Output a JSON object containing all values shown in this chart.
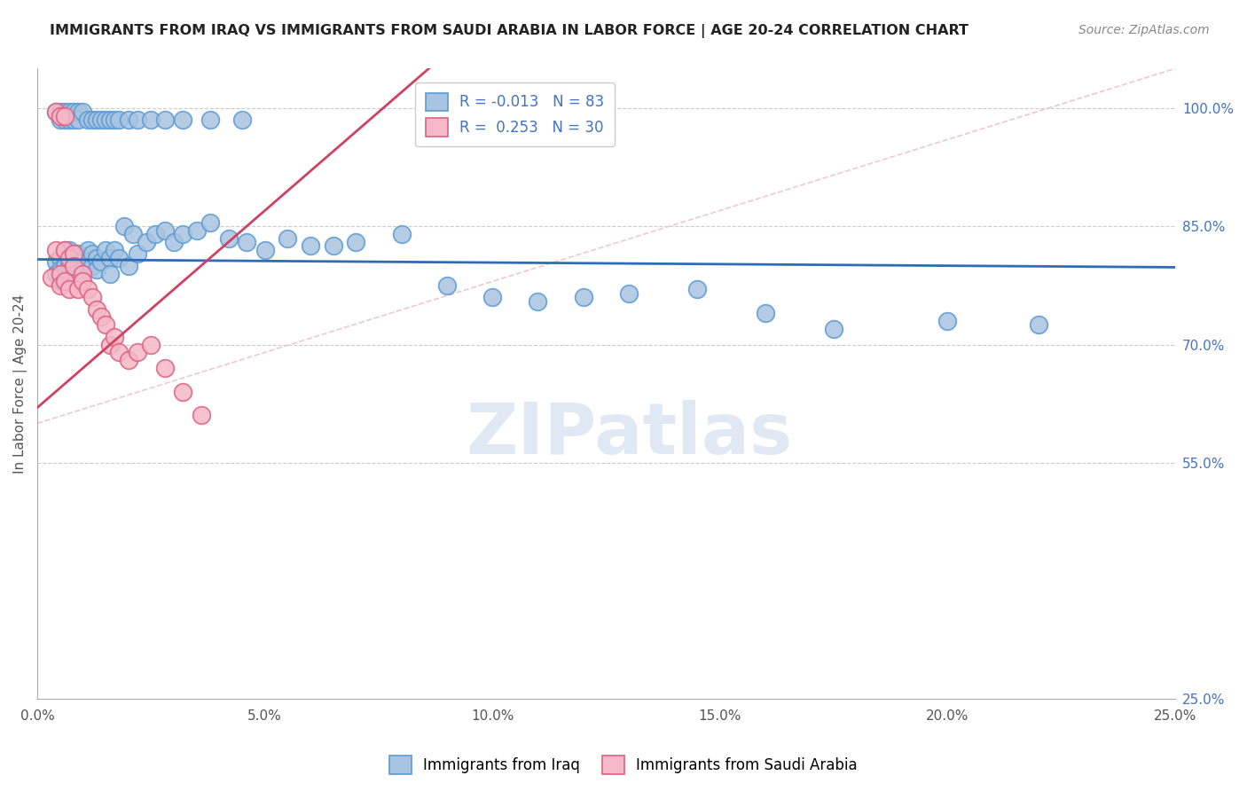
{
  "title": "IMMIGRANTS FROM IRAQ VS IMMIGRANTS FROM SAUDI ARABIA IN LABOR FORCE | AGE 20-24 CORRELATION CHART",
  "source": "Source: ZipAtlas.com",
  "ylabel": "In Labor Force | Age 20-24",
  "x_tick_labels": [
    "0.0%",
    "5.0%",
    "10.0%",
    "15.0%",
    "20.0%",
    "25.0%"
  ],
  "x_tick_vals": [
    0.0,
    0.05,
    0.1,
    0.15,
    0.2,
    0.25
  ],
  "y_tick_labels": [
    "100.0%",
    "85.0%",
    "70.0%",
    "55.0%",
    "25.0%"
  ],
  "y_tick_vals": [
    1.0,
    0.85,
    0.7,
    0.55,
    0.25
  ],
  "xlim": [
    0.0,
    0.25
  ],
  "ylim": [
    0.25,
    1.05
  ],
  "iraq_color": "#a8c4e0",
  "saudi_color": "#f4b8c8",
  "iraq_edge_color": "#5b9bd5",
  "saudi_edge_color": "#e06080",
  "iraq_line_color": "#2e6db4",
  "saudi_line_color": "#d04060",
  "diagonal_color": "#f0c0cc",
  "legend_iraq_R": "-0.013",
  "legend_iraq_N": "83",
  "legend_saudi_R": "0.253",
  "legend_saudi_N": "30",
  "grid_color": "#cccccc",
  "watermark": "ZIPatlas",
  "iraq_x": [
    0.004,
    0.004,
    0.005,
    0.005,
    0.005,
    0.006,
    0.006,
    0.007,
    0.007,
    0.008,
    0.008,
    0.009,
    0.009,
    0.01,
    0.01,
    0.011,
    0.011,
    0.012,
    0.012,
    0.013,
    0.013,
    0.014,
    0.015,
    0.016,
    0.016,
    0.017,
    0.018,
    0.019,
    0.02,
    0.021,
    0.022,
    0.024,
    0.026,
    0.028,
    0.03,
    0.032,
    0.035,
    0.038,
    0.042,
    0.046,
    0.05,
    0.055,
    0.06,
    0.065,
    0.07,
    0.08,
    0.09,
    0.1,
    0.11,
    0.12,
    0.13,
    0.145,
    0.16,
    0.175,
    0.2,
    0.22,
    0.004,
    0.005,
    0.005,
    0.006,
    0.006,
    0.007,
    0.007,
    0.008,
    0.008,
    0.009,
    0.009,
    0.01,
    0.011,
    0.012,
    0.013,
    0.014,
    0.015,
    0.016,
    0.017,
    0.018,
    0.02,
    0.022,
    0.025,
    0.028,
    0.032,
    0.038,
    0.045
  ],
  "iraq_y": [
    0.805,
    0.79,
    0.81,
    0.795,
    0.78,
    0.82,
    0.8,
    0.82,
    0.8,
    0.815,
    0.79,
    0.815,
    0.8,
    0.81,
    0.795,
    0.82,
    0.805,
    0.8,
    0.815,
    0.81,
    0.795,
    0.805,
    0.82,
    0.81,
    0.79,
    0.82,
    0.81,
    0.85,
    0.8,
    0.84,
    0.815,
    0.83,
    0.84,
    0.845,
    0.83,
    0.84,
    0.845,
    0.855,
    0.835,
    0.83,
    0.82,
    0.835,
    0.825,
    0.825,
    0.83,
    0.84,
    0.775,
    0.76,
    0.755,
    0.76,
    0.765,
    0.77,
    0.74,
    0.72,
    0.73,
    0.725,
    0.995,
    0.995,
    0.985,
    0.995,
    0.985,
    0.995,
    0.985,
    0.995,
    0.985,
    0.995,
    0.985,
    0.995,
    0.985,
    0.985,
    0.985,
    0.985,
    0.985,
    0.985,
    0.985,
    0.985,
    0.985,
    0.985,
    0.985,
    0.985,
    0.985,
    0.985,
    0.985
  ],
  "saudi_x": [
    0.003,
    0.004,
    0.005,
    0.005,
    0.006,
    0.006,
    0.007,
    0.007,
    0.008,
    0.008,
    0.009,
    0.01,
    0.01,
    0.011,
    0.012,
    0.013,
    0.014,
    0.015,
    0.016,
    0.017,
    0.018,
    0.02,
    0.022,
    0.025,
    0.028,
    0.032,
    0.036,
    0.004,
    0.005,
    0.006
  ],
  "saudi_y": [
    0.785,
    0.82,
    0.79,
    0.775,
    0.82,
    0.78,
    0.81,
    0.77,
    0.815,
    0.8,
    0.77,
    0.79,
    0.78,
    0.77,
    0.76,
    0.745,
    0.735,
    0.725,
    0.7,
    0.71,
    0.69,
    0.68,
    0.69,
    0.7,
    0.67,
    0.64,
    0.61,
    0.995,
    0.99,
    0.99
  ]
}
